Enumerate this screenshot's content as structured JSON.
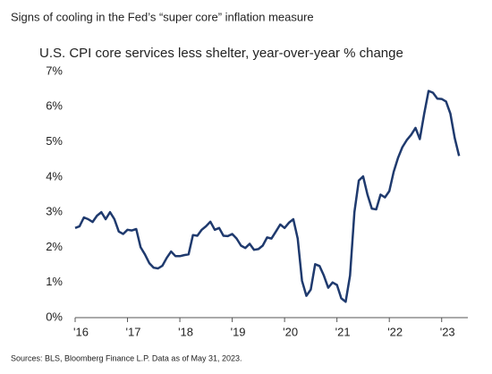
{
  "chart_data": {
    "type": "line",
    "title": "Signs of cooling in the Fed’s “super core” inflation measure",
    "subtitle": "U.S. CPI core services less shelter, year-over-year % change",
    "source": "Sources: BLS, Bloomberg Finance L.P. Data as of May 31, 2023.",
    "x": [
      2016,
      2016.083,
      2016.167,
      2016.25,
      2016.333,
      2016.417,
      2016.5,
      2016.583,
      2016.667,
      2016.75,
      2016.833,
      2016.917,
      2017,
      2017.083,
      2017.167,
      2017.25,
      2017.333,
      2017.417,
      2017.5,
      2017.583,
      2017.667,
      2017.75,
      2017.833,
      2017.917,
      2018,
      2018.083,
      2018.167,
      2018.25,
      2018.333,
      2018.417,
      2018.5,
      2018.583,
      2018.667,
      2018.75,
      2018.833,
      2018.917,
      2019,
      2019.083,
      2019.167,
      2019.25,
      2019.333,
      2019.417,
      2019.5,
      2019.583,
      2019.667,
      2019.75,
      2019.833,
      2019.917,
      2020,
      2020.083,
      2020.167,
      2020.25,
      2020.333,
      2020.417,
      2020.5,
      2020.583,
      2020.667,
      2020.75,
      2020.833,
      2020.917,
      2021,
      2021.083,
      2021.167,
      2021.25,
      2021.333,
      2021.417,
      2021.5,
      2021.583,
      2021.667,
      2021.75,
      2021.833,
      2021.917,
      2022,
      2022.083,
      2022.167,
      2022.25,
      2022.333,
      2022.417,
      2022.5,
      2022.583,
      2022.667,
      2022.75,
      2022.833,
      2022.917,
      2023,
      2023.083,
      2023.167,
      2023.25,
      2023.333
    ],
    "series": [
      {
        "color": "#1f3a6e",
        "values": [
          2.55,
          2.6,
          2.85,
          2.8,
          2.72,
          2.9,
          3.0,
          2.8,
          3.0,
          2.8,
          2.45,
          2.38,
          2.5,
          2.48,
          2.52,
          2.0,
          1.8,
          1.55,
          1.42,
          1.4,
          1.48,
          1.7,
          1.88,
          1.75,
          1.75,
          1.78,
          1.8,
          2.35,
          2.33,
          2.5,
          2.6,
          2.73,
          2.5,
          2.55,
          2.33,
          2.32,
          2.38,
          2.25,
          2.05,
          1.98,
          2.1,
          1.93,
          1.95,
          2.05,
          2.28,
          2.25,
          2.45,
          2.65,
          2.55,
          2.7,
          2.8,
          2.25,
          1.05,
          0.62,
          0.8,
          1.52,
          1.47,
          1.2,
          0.85,
          1.0,
          0.93,
          0.55,
          0.45,
          1.2,
          3.0,
          3.9,
          4.02,
          3.5,
          3.1,
          3.08,
          3.5,
          3.42,
          3.6,
          4.15,
          4.55,
          4.85,
          5.05,
          5.2,
          5.4,
          5.08,
          5.8,
          6.45,
          6.4,
          6.23,
          6.22,
          6.15,
          5.8,
          5.1,
          4.6
        ]
      }
    ],
    "xlim": [
      2016,
      2023.5
    ],
    "xticks": [
      {
        "value": 2016,
        "label": "'16"
      },
      {
        "value": 2017,
        "label": "'17"
      },
      {
        "value": 2018,
        "label": "'18"
      },
      {
        "value": 2019,
        "label": "'19"
      },
      {
        "value": 2020,
        "label": "'20"
      },
      {
        "value": 2021,
        "label": "'21"
      },
      {
        "value": 2022,
        "label": "'22"
      },
      {
        "value": 2023,
        "label": "'23"
      }
    ],
    "ylim": [
      0,
      7
    ],
    "yticks": [
      {
        "value": 0,
        "label": "0%"
      },
      {
        "value": 1,
        "label": "1%"
      },
      {
        "value": 2,
        "label": "2%"
      },
      {
        "value": 3,
        "label": "3%"
      },
      {
        "value": 4,
        "label": "4%"
      },
      {
        "value": 5,
        "label": "5%"
      },
      {
        "value": 6,
        "label": "6%"
      },
      {
        "value": 7,
        "label": "7%"
      }
    ],
    "grid": false
  }
}
